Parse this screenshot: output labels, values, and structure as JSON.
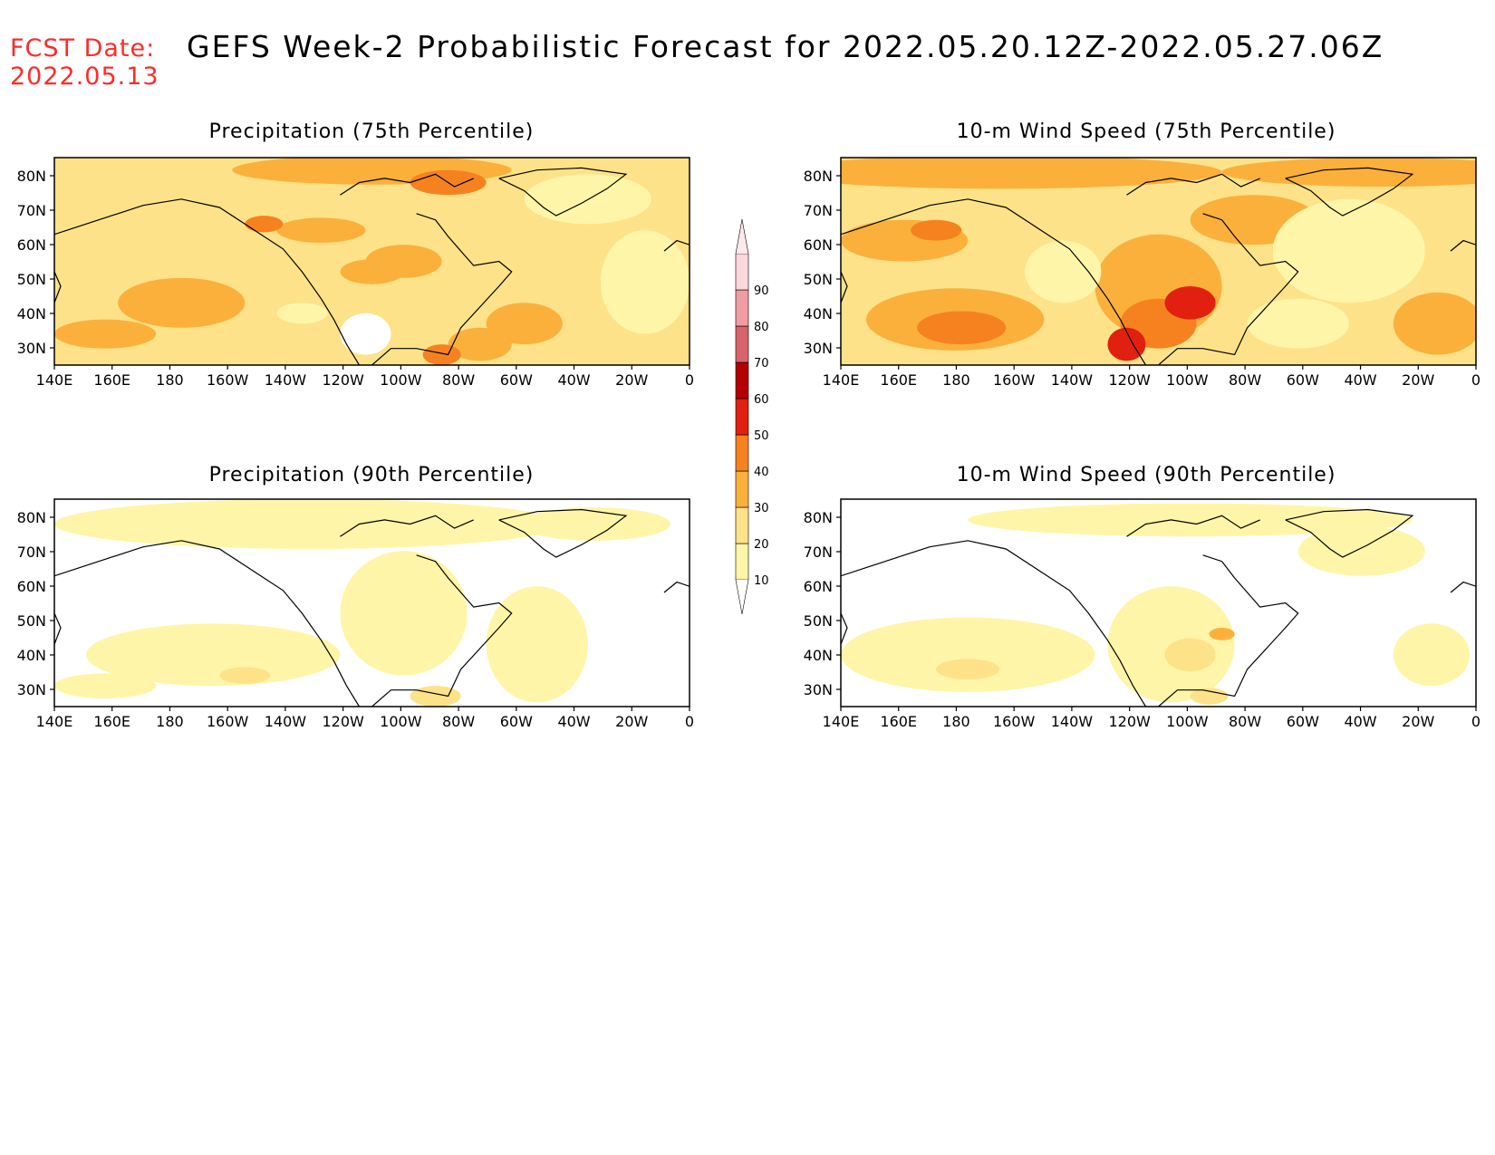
{
  "header": {
    "fcst_label": "FCST Date:",
    "fcst_date": "2022.05.13",
    "title": "GEFS Week-2 Probabilistic Forecast for 2022.05.20.12Z-2022.05.27.06Z"
  },
  "axes": {
    "lon_ticks": [
      "140E",
      "160E",
      "180",
      "160W",
      "140W",
      "120W",
      "100W",
      "80W",
      "60W",
      "40W",
      "20W",
      "0"
    ],
    "lat_ticks": [
      "80N",
      "70N",
      "60N",
      "50N",
      "40N",
      "30N"
    ]
  },
  "panels": [
    {
      "id": "precip75",
      "title": "Precipitation (75th Percentile)"
    },
    {
      "id": "wind75",
      "title": "10-m Wind Speed (75th Percentile)"
    },
    {
      "id": "precip90",
      "title": "Precipitation (90th Percentile)"
    },
    {
      "id": "wind90",
      "title": "10-m Wind Speed (90th Percentile)"
    }
  ],
  "colorbar": {
    "levels": [
      "10",
      "20",
      "30",
      "40",
      "50",
      "60",
      "70",
      "80",
      "90"
    ],
    "colors": [
      "#fff5a8",
      "#fde289",
      "#fbb03b",
      "#f5821f",
      "#e2200f",
      "#b30000",
      "#d9636a",
      "#f09ca3",
      "#fbd6db"
    ]
  },
  "palette": {
    "white": "#ffffff",
    "c10": "#fff5a8",
    "c20": "#fde289",
    "c30": "#fbb03b",
    "c40": "#f5821f",
    "c50": "#e2200f",
    "c60": "#b30000"
  }
}
